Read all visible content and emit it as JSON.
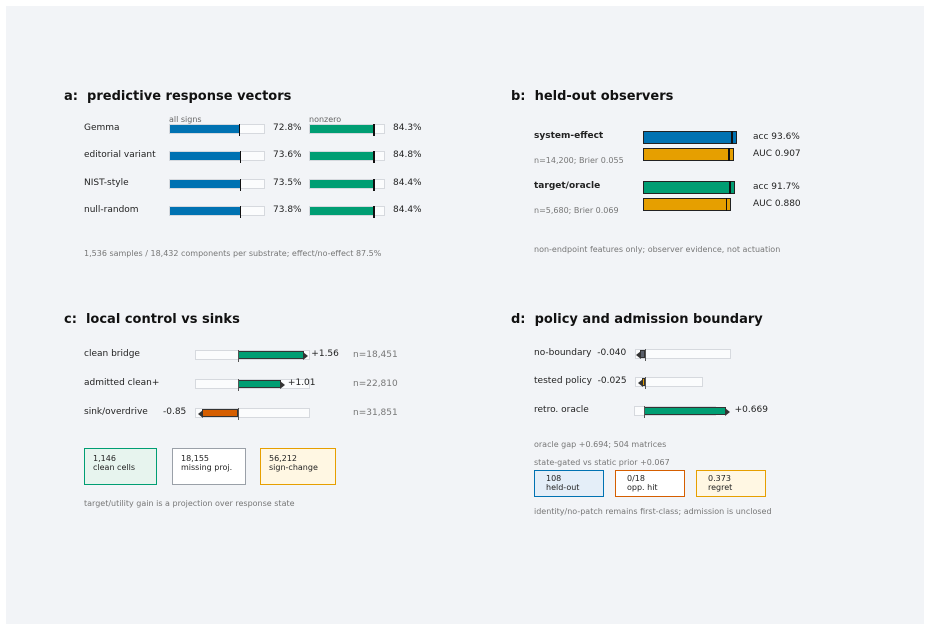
{
  "colors": {
    "blue": "#0072b2",
    "green": "#009e73",
    "orange": "#e69f00",
    "vermilion": "#d55e00",
    "grey": "#5a5f6a"
  },
  "panel_a": {
    "letter": "a:",
    "title": "predictive response vectors",
    "col1_header": "all signs",
    "col2_header": "nonzero",
    "rows": [
      {
        "label": "Gemma",
        "all": "72.8%",
        "nonzero": "84.3%"
      },
      {
        "label": "editorial variant",
        "all": "73.6%",
        "nonzero": "84.8%"
      },
      {
        "label": "NIST-style",
        "all": "73.5%",
        "nonzero": "84.4%"
      },
      {
        "label": "null-random",
        "all": "73.8%",
        "nonzero": "84.4%"
      }
    ],
    "footnote": "1,536 samples / 18,432 components per substrate; effect/no-effect 87.5%"
  },
  "panel_b": {
    "letter": "b:",
    "title": "held-out observers",
    "groups": [
      {
        "name": "system-effect",
        "stats": "n=14,200; Brier 0.055",
        "acc_label": "acc 93.6%",
        "auc_label": "AUC 0.907"
      },
      {
        "name": "target/oracle",
        "stats": "n=5,680; Brier 0.069",
        "acc_label": "acc 91.7%",
        "auc_label": "AUC 0.880"
      }
    ],
    "footnote": "non-endpoint features only; observer evidence, not actuation"
  },
  "panel_c": {
    "letter": "c:",
    "title": "local control vs sinks",
    "rows": [
      {
        "label": "clean bridge",
        "value_label": "+1.56",
        "n": "n=18,451"
      },
      {
        "label": "admitted clean+",
        "value_label": "+1.01",
        "n": "n=22,810"
      },
      {
        "label": "sink/overdrive",
        "value_label": "-0.85",
        "n": "n=31,851"
      }
    ],
    "cards": [
      {
        "value": "1,146",
        "label": "clean cells"
      },
      {
        "value": "18,155",
        "label": "missing proj."
      },
      {
        "value": "56,212",
        "label": "sign-change"
      }
    ],
    "footnote": "target/utility gain is a projection over response state"
  },
  "panel_d": {
    "letter": "d:",
    "title": "policy and admission boundary",
    "rows": [
      {
        "label": "no-boundary",
        "value_label": "-0.040"
      },
      {
        "label": "tested policy",
        "value_label": "-0.025"
      },
      {
        "label": "retro. oracle",
        "value_label": "+0.669"
      }
    ],
    "note1": "oracle gap +0.694; 504 matrices",
    "note2": "state-gated vs static prior +0.067",
    "cards": [
      {
        "value": "108",
        "label": "held-out"
      },
      {
        "value": "0/18",
        "label": "opp. hit"
      },
      {
        "value": "0.373",
        "label": "regret"
      }
    ],
    "footnote": "identity/no-patch remains first-class; admission is unclosed"
  },
  "chart_data": [
    {
      "panel": "a",
      "type": "bar",
      "title": "predictive response vectors",
      "categories": [
        "Gemma",
        "editorial variant",
        "NIST-style",
        "null-random"
      ],
      "series": [
        {
          "name": "all signs",
          "values": [
            72.8,
            73.6,
            73.5,
            73.8
          ]
        },
        {
          "name": "nonzero",
          "values": [
            84.3,
            84.8,
            84.4,
            84.4
          ]
        }
      ],
      "unit": "%"
    },
    {
      "panel": "b",
      "type": "bar",
      "title": "held-out observers",
      "categories": [
        "system-effect",
        "target/oracle"
      ],
      "series": [
        {
          "name": "acc",
          "values": [
            93.6,
            91.7
          ],
          "unit": "%"
        },
        {
          "name": "AUC",
          "values": [
            0.907,
            0.88
          ]
        }
      ],
      "n": [
        14200,
        5680
      ],
      "brier": [
        0.055,
        0.069
      ]
    },
    {
      "panel": "c",
      "type": "bar",
      "title": "local control vs sinks",
      "categories": [
        "clean bridge",
        "admitted clean+",
        "sink/overdrive"
      ],
      "values": [
        1.56,
        1.01,
        -0.85
      ],
      "n": [
        18451,
        22810,
        31851
      ]
    },
    {
      "panel": "d",
      "type": "bar",
      "title": "policy and admission boundary",
      "categories": [
        "no-boundary",
        "tested policy",
        "retro. oracle"
      ],
      "values": [
        -0.04,
        -0.025,
        0.669
      ]
    }
  ]
}
